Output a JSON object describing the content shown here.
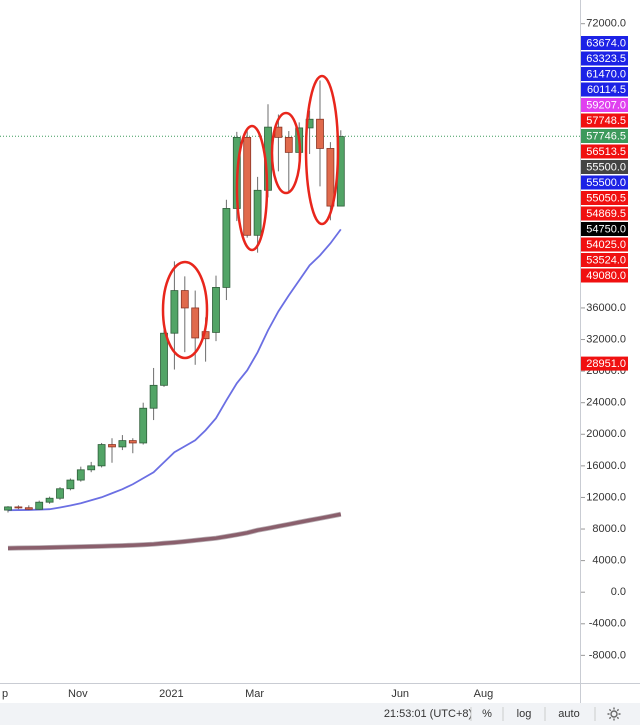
{
  "chart_data": {
    "type": "candlestick",
    "categories": [
      "p",
      null,
      null,
      null,
      null,
      null,
      null,
      "Nov",
      null,
      null,
      null,
      null,
      null,
      null,
      null,
      null,
      "2021",
      null,
      null,
      null,
      null,
      null,
      null,
      null,
      "Mar",
      null,
      null,
      null,
      null,
      null,
      null,
      null,
      null,
      null,
      null,
      null,
      null,
      null,
      "Jun",
      null,
      null,
      null,
      null,
      null,
      null,
      null,
      "Aug",
      null,
      null,
      null,
      null,
      null,
      null,
      null,
      null
    ],
    "open": [
      10400,
      10800,
      10700,
      10500,
      11400,
      11900,
      13100,
      14200,
      15500,
      16000,
      18700,
      18400,
      19200,
      18900,
      23300,
      26200,
      32800,
      38200,
      36000,
      33000,
      32900,
      38600,
      48600,
      57600,
      45200,
      50900,
      58900,
      57600,
      55700,
      58800,
      59900,
      56200,
      48900,
      null,
      null,
      null,
      null,
      null,
      null,
      null,
      null,
      null,
      null,
      null,
      null,
      null,
      null,
      null,
      null,
      null,
      null,
      null,
      null,
      null,
      null
    ],
    "high": [
      10900,
      11000,
      11000,
      11600,
      12100,
      13300,
      14400,
      15900,
      16500,
      18900,
      19500,
      19900,
      19500,
      24000,
      28400,
      34700,
      41900,
      40000,
      38200,
      34800,
      40100,
      49700,
      58300,
      58400,
      52600,
      61800,
      60500,
      58400,
      59500,
      61000,
      64800,
      57000,
      58500,
      null,
      null,
      null,
      null,
      null,
      null,
      null,
      null,
      null,
      null,
      null,
      null,
      null,
      null,
      null,
      null,
      null,
      null,
      null,
      null,
      null,
      null
    ],
    "low": [
      10100,
      10500,
      10400,
      10400,
      11200,
      11700,
      12900,
      14000,
      15200,
      15800,
      16400,
      18000,
      17600,
      18700,
      21800,
      26000,
      28200,
      30400,
      28800,
      29200,
      31800,
      37000,
      47000,
      44900,
      43000,
      50000,
      53300,
      50500,
      54900,
      55500,
      51400,
      47100,
      48900,
      null,
      null,
      null,
      null,
      null,
      null,
      null,
      null,
      null,
      null,
      null,
      null,
      null,
      null,
      null,
      null,
      null,
      null,
      null,
      null,
      null,
      null
    ],
    "close": [
      10800,
      10700,
      10500,
      11400,
      11900,
      13100,
      14200,
      15500,
      16000,
      18700,
      18400,
      19200,
      18900,
      23300,
      26200,
      32800,
      38200,
      36000,
      32200,
      32100,
      38600,
      48600,
      57600,
      45200,
      50900,
      58900,
      57600,
      55700,
      58800,
      59900,
      56200,
      48900,
      57700,
      null,
      null,
      null,
      null,
      null,
      null,
      null,
      null,
      null,
      null,
      null,
      null,
      null,
      null,
      null,
      null,
      null,
      null,
      null,
      null,
      null,
      null
    ],
    "up_color": "#52a466",
    "down_color": "#e06a4c",
    "series": [
      {
        "color": "#6b6fe3",
        "values": [
          10380,
          10400,
          10420,
          10460,
          10510,
          10730,
          10980,
          11270,
          11650,
          12020,
          12530,
          13040,
          13670,
          14430,
          15190,
          16460,
          17720,
          18480,
          19240,
          20510,
          22030,
          24300,
          26460,
          28100,
          30380,
          33160,
          35570,
          37590,
          39490,
          41390,
          42660,
          44180,
          45950,
          null,
          null,
          null,
          null,
          null,
          null,
          null,
          null,
          null,
          null,
          null,
          null,
          null,
          null,
          null,
          null,
          null,
          null,
          null,
          null,
          null,
          null
        ]
      },
      {
        "color": "#8a5f6c",
        "values": [
          5570,
          5590,
          5610,
          5630,
          5660,
          5690,
          5720,
          5750,
          5780,
          5820,
          5860,
          5900,
          5950,
          6010,
          6080,
          6200,
          6300,
          6420,
          6560,
          6700,
          6840,
          7050,
          7280,
          7520,
          7850,
          8090,
          8350,
          8600,
          8860,
          9110,
          9360,
          9610,
          9870,
          null,
          null,
          null,
          null,
          null,
          null,
          null,
          null,
          null,
          null,
          null,
          null,
          null,
          null,
          null,
          null,
          null,
          null,
          null,
          null,
          null,
          null
        ]
      }
    ],
    "ylim": [
      -11500,
      75000
    ],
    "yticks": [
      {
        "value": 72000,
        "label": "72000.0"
      },
      {
        "value": 36000,
        "label": "36000.0"
      },
      {
        "value": 32000,
        "label": "32000.0"
      },
      {
        "value": 28000,
        "label": "28000.0"
      },
      {
        "value": 24000,
        "label": "24000.0"
      },
      {
        "value": 20000,
        "label": "20000.0"
      },
      {
        "value": 16000,
        "label": "16000.0"
      },
      {
        "value": 12000,
        "label": "12000.0"
      },
      {
        "value": 8000,
        "label": "8000.0"
      },
      {
        "value": 4000,
        "label": "4000.0"
      },
      {
        "value": 0,
        "label": "0.0"
      },
      {
        "value": -4000,
        "label": "-4000.0"
      },
      {
        "value": -8000,
        "label": "-8000.0"
      }
    ],
    "price_labels": [
      {
        "value": 63674,
        "label": "63674.0",
        "color": "#1c22e6"
      },
      {
        "value": 63323.5,
        "label": "63323.5",
        "color": "#1c22e6"
      },
      {
        "value": 61470,
        "label": "61470.0",
        "color": "#1c22e6"
      },
      {
        "value": 60114.5,
        "label": "60114.5",
        "color": "#1c22e6"
      },
      {
        "value": 59207,
        "label": "59207.0",
        "color": "#e040f0"
      },
      {
        "value": 57748.5,
        "label": "57748.5",
        "color": "#f01010"
      },
      {
        "value": 57746.5,
        "label": "57746.5",
        "color": "#3d9a5c"
      },
      {
        "value": 56513.5,
        "label": "56513.5",
        "color": "#f01010"
      },
      {
        "value": 55500,
        "label": "55500.0",
        "color": "#444444"
      },
      {
        "value": 55500,
        "label": "55500.0",
        "color": "#1c22e6"
      },
      {
        "value": 55050.5,
        "label": "55050.5",
        "color": "#f01010"
      },
      {
        "value": 54869.5,
        "label": "54869.5",
        "color": "#f01010"
      },
      {
        "value": 54750,
        "label": "54750.0",
        "color": "#000000"
      },
      {
        "value": 54025,
        "label": "54025.0",
        "color": "#f01010"
      },
      {
        "value": 53524,
        "label": "53524.0",
        "color": "#f01010"
      },
      {
        "value": 49080,
        "label": "49080.0",
        "color": "#f01010"
      },
      {
        "value": 28951,
        "label": "28951.0",
        "color": "#f01010"
      }
    ],
    "last_price_line": 57746.5,
    "last_price_color": "#3d9a5c"
  },
  "toolbar": {
    "time": "21:53:01 (UTC+8)",
    "percent": "%",
    "log": "log",
    "auto": "auto"
  }
}
